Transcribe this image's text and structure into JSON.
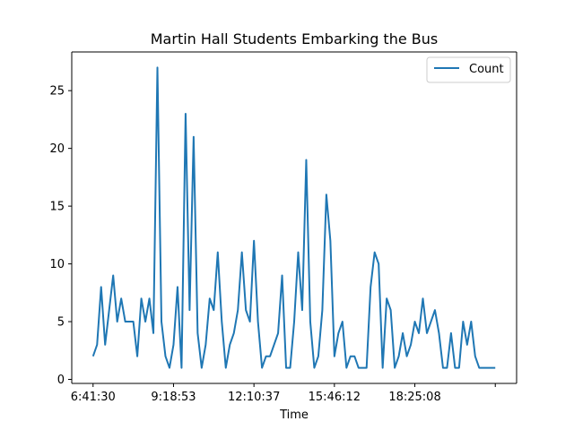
{
  "chart_data": {
    "type": "line",
    "title": "Martin Hall Students Embarking the Bus",
    "xlabel": "Time",
    "ylabel": "",
    "grid": false,
    "legend_placement": "top-right",
    "line_color": "#1f77b4",
    "ylim": [
      -0.35,
      28.35
    ],
    "yticks": [
      0,
      5,
      10,
      15,
      20,
      25
    ],
    "xlim": [
      -5.3,
      105.3
    ],
    "xticks": [
      {
        "value": 0,
        "label": "6:41:30"
      },
      {
        "value": 20,
        "label": "9:18:53"
      },
      {
        "value": 40,
        "label": "12:10:37"
      },
      {
        "value": 60,
        "label": "15:46:12"
      },
      {
        "value": 80,
        "label": "18:25:08"
      },
      {
        "value": 100,
        "label": ""
      }
    ],
    "series": [
      {
        "name": "Count",
        "x": [
          0,
          1,
          2,
          3,
          4,
          5,
          6,
          7,
          8,
          9,
          10,
          11,
          12,
          13,
          14,
          15,
          16,
          17,
          18,
          19,
          20,
          21,
          22,
          23,
          24,
          25,
          26,
          27,
          28,
          29,
          30,
          31,
          32,
          33,
          34,
          35,
          36,
          37,
          38,
          39,
          40,
          41,
          42,
          43,
          44,
          45,
          46,
          47,
          48,
          49,
          50,
          51,
          52,
          53,
          54,
          55,
          56,
          57,
          58,
          59,
          60,
          61,
          62,
          63,
          64,
          65,
          66,
          67,
          68,
          69,
          70,
          71,
          72,
          73,
          74,
          75,
          76,
          77,
          78,
          79,
          80,
          81,
          82,
          83,
          84,
          85,
          86,
          87,
          88,
          89,
          90,
          91,
          92,
          93,
          94,
          95,
          96,
          97,
          98,
          99,
          100
        ],
        "values": [
          2,
          3,
          8,
          3,
          6,
          9,
          5,
          7,
          5,
          5,
          5,
          2,
          7,
          5,
          7,
          4,
          27,
          5,
          2,
          1,
          3,
          8,
          1,
          23,
          6,
          21,
          4,
          1,
          3,
          7,
          6,
          11,
          5,
          1,
          3,
          4,
          6,
          11,
          6,
          5,
          12,
          5,
          1,
          2,
          2,
          3,
          4,
          9,
          1,
          1,
          5,
          11,
          6,
          19,
          5,
          1,
          2,
          6,
          16,
          12,
          2,
          4,
          5,
          1,
          2,
          2,
          1,
          1,
          1,
          8,
          11,
          10,
          1,
          7,
          6,
          1,
          2,
          4,
          2,
          3,
          5,
          4,
          7,
          4,
          5,
          6,
          4,
          1,
          1,
          4,
          1,
          1,
          5,
          3,
          5,
          2,
          1,
          1,
          1,
          1,
          1
        ]
      }
    ]
  }
}
